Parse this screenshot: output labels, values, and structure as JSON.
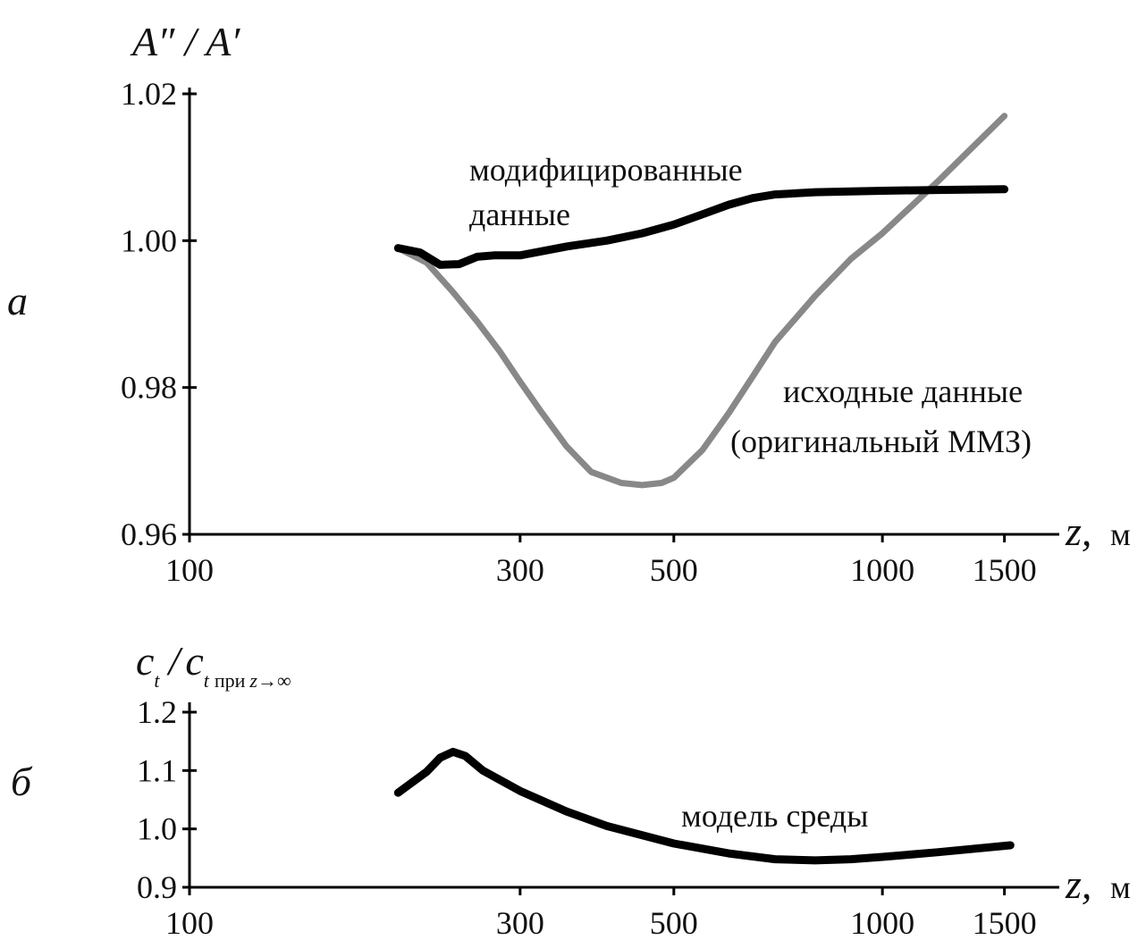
{
  "chart_data": [
    {
      "type": "line",
      "panel": "а",
      "ylabel": "A″ / A′",
      "xlabel": "z,",
      "xunit": "м",
      "x_scale": "log",
      "xlim": [
        100,
        1800
      ],
      "ylim": [
        0.96,
        1.02
      ],
      "x_ticks": [
        100,
        300,
        500,
        1000,
        1500
      ],
      "y_ticks": [
        "0.96",
        "0.98",
        "1.00",
        "1.02"
      ],
      "series": [
        {
          "name": "модифицированные данные",
          "color": "#000000",
          "x": [
            200,
            215,
            230,
            245,
            260,
            275,
            300,
            350,
            400,
            450,
            500,
            550,
            600,
            650,
            700,
            800,
            900,
            1000,
            1200,
            1500
          ],
          "y": [
            0.999,
            0.9984,
            0.9967,
            0.9968,
            0.9978,
            0.998,
            0.998,
            0.9992,
            1.0,
            1.001,
            1.0022,
            1.0036,
            1.0049,
            1.0058,
            1.0063,
            1.0066,
            1.0067,
            1.0068,
            1.0069,
            1.007
          ]
        },
        {
          "name": "исходные данные (оригинальный ММЗ)",
          "color": "#888888",
          "x": [
            200,
            220,
            240,
            260,
            280,
            300,
            320,
            350,
            380,
            420,
            450,
            480,
            500,
            550,
            600,
            650,
            700,
            800,
            900,
            1000,
            1200,
            1500
          ],
          "y": [
            0.999,
            0.997,
            0.993,
            0.989,
            0.985,
            0.9808,
            0.977,
            0.972,
            0.9685,
            0.967,
            0.9667,
            0.967,
            0.9677,
            0.9715,
            0.9765,
            0.9815,
            0.9862,
            0.9925,
            0.9975,
            1.001,
            1.008,
            1.017
          ]
        }
      ],
      "annotations": [
        {
          "text": "модифицированные"
        },
        {
          "text": "данные"
        },
        {
          "text": "исходные данные"
        },
        {
          "text": "(оригинальный ММЗ)"
        }
      ]
    },
    {
      "type": "line",
      "panel": "б",
      "ylabel_main": "c",
      "ylabel_sub": "t",
      "ylabel_den_main": "c",
      "ylabel_den_sub_t": "t",
      "ylabel_den_sub_pri": "при",
      "ylabel_den_sub_z": "z",
      "ylabel_den_sub_limit": "→∞",
      "xlabel": "z,",
      "xunit": "м",
      "x_scale": "log",
      "xlim": [
        100,
        1800
      ],
      "ylim": [
        0.9,
        1.2
      ],
      "x_ticks": [
        100,
        300,
        500,
        1000,
        1500
      ],
      "y_ticks": [
        "0.9",
        "1.0",
        "1.1",
        "1.2"
      ],
      "series": [
        {
          "name": "модель среды",
          "color": "#000000",
          "x": [
            200,
            220,
            230,
            240,
            250,
            265,
            300,
            350,
            400,
            500,
            600,
            700,
            800,
            900,
            1000,
            1200,
            1530
          ],
          "y": [
            1.062,
            1.098,
            1.122,
            1.132,
            1.125,
            1.1,
            1.065,
            1.03,
            1.005,
            0.975,
            0.958,
            0.948,
            0.946,
            0.948,
            0.952,
            0.96,
            0.972
          ]
        }
      ],
      "annotations": [
        {
          "text": "модель среды"
        }
      ]
    }
  ]
}
